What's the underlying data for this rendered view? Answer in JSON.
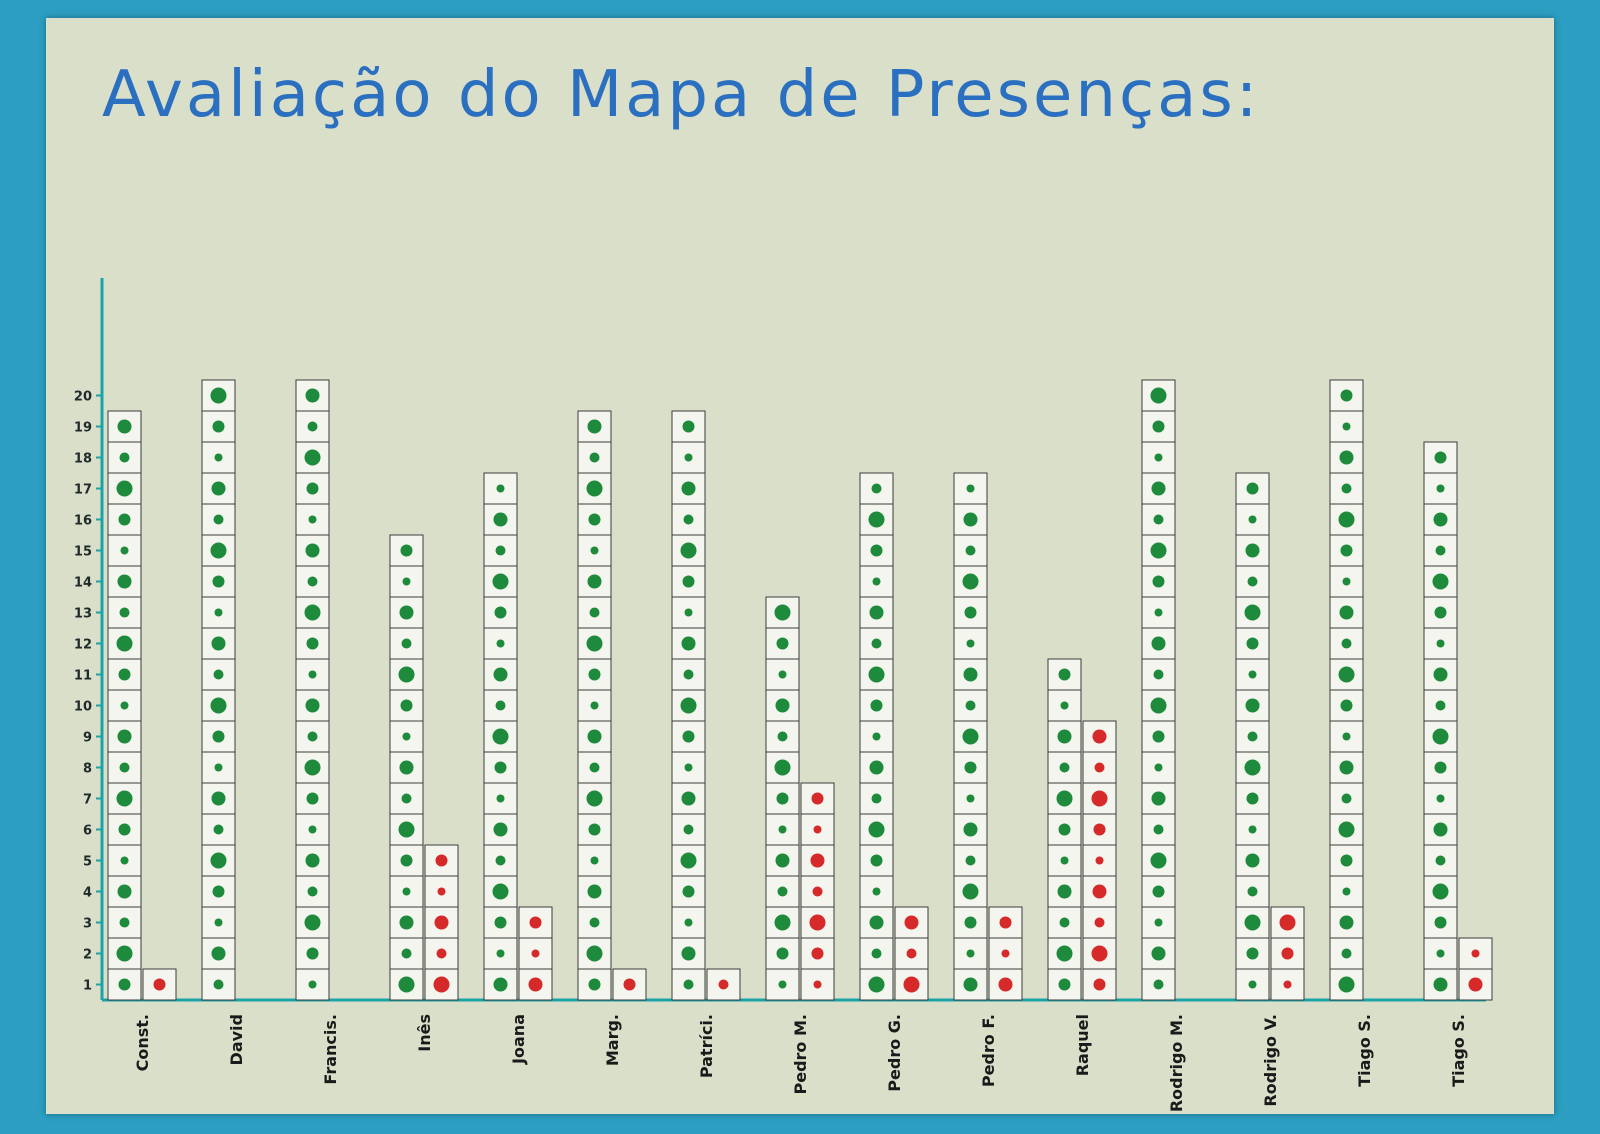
{
  "title": "Avaliação do Mapa de Presenças:",
  "colors": {
    "board": "#2b9ec2",
    "paper": "#d9dfc9",
    "title": "#2a6fc0",
    "axis": "#1aa3a8",
    "present": "#1e8a3c",
    "absent": "#d62a2a"
  },
  "chart_data": {
    "type": "bar",
    "title": "Avaliação do Mapa de Presenças:",
    "xlabel": "",
    "ylabel": "",
    "yticks": [
      1,
      2,
      3,
      4,
      5,
      6,
      7,
      8,
      9,
      10,
      11,
      12,
      13,
      14,
      15,
      16,
      17,
      18,
      19,
      20
    ],
    "ytick_labels": [
      "1",
      "2",
      "3",
      "4",
      "5",
      "6",
      "7",
      "8",
      "9",
      "10",
      "11",
      "12",
      "13",
      "14",
      "15",
      "16",
      "17",
      "18",
      "19",
      "20"
    ],
    "ylim": [
      0,
      20
    ],
    "categories": [
      "Const.",
      "David",
      "Francis.",
      "Inês",
      "Joana",
      "Marg.",
      "Patríci.",
      "Pedro M.",
      "Pedro G.",
      "Pedro F.",
      "Raquel",
      "Rodrigo M.",
      "Rodrigo V.",
      "Tiago S.",
      "Tiago S."
    ],
    "series": [
      {
        "color": "#1e8a3c",
        "values": [
          19,
          20,
          20,
          15,
          17,
          19,
          19,
          13,
          17,
          17,
          11,
          20,
          17,
          20,
          18
        ]
      },
      {
        "color": "#d62a2a",
        "values": [
          1,
          0,
          0,
          5,
          3,
          1,
          1,
          7,
          3,
          3,
          9,
          0,
          3,
          0,
          2
        ]
      }
    ],
    "grid": false,
    "legend": "none"
  }
}
